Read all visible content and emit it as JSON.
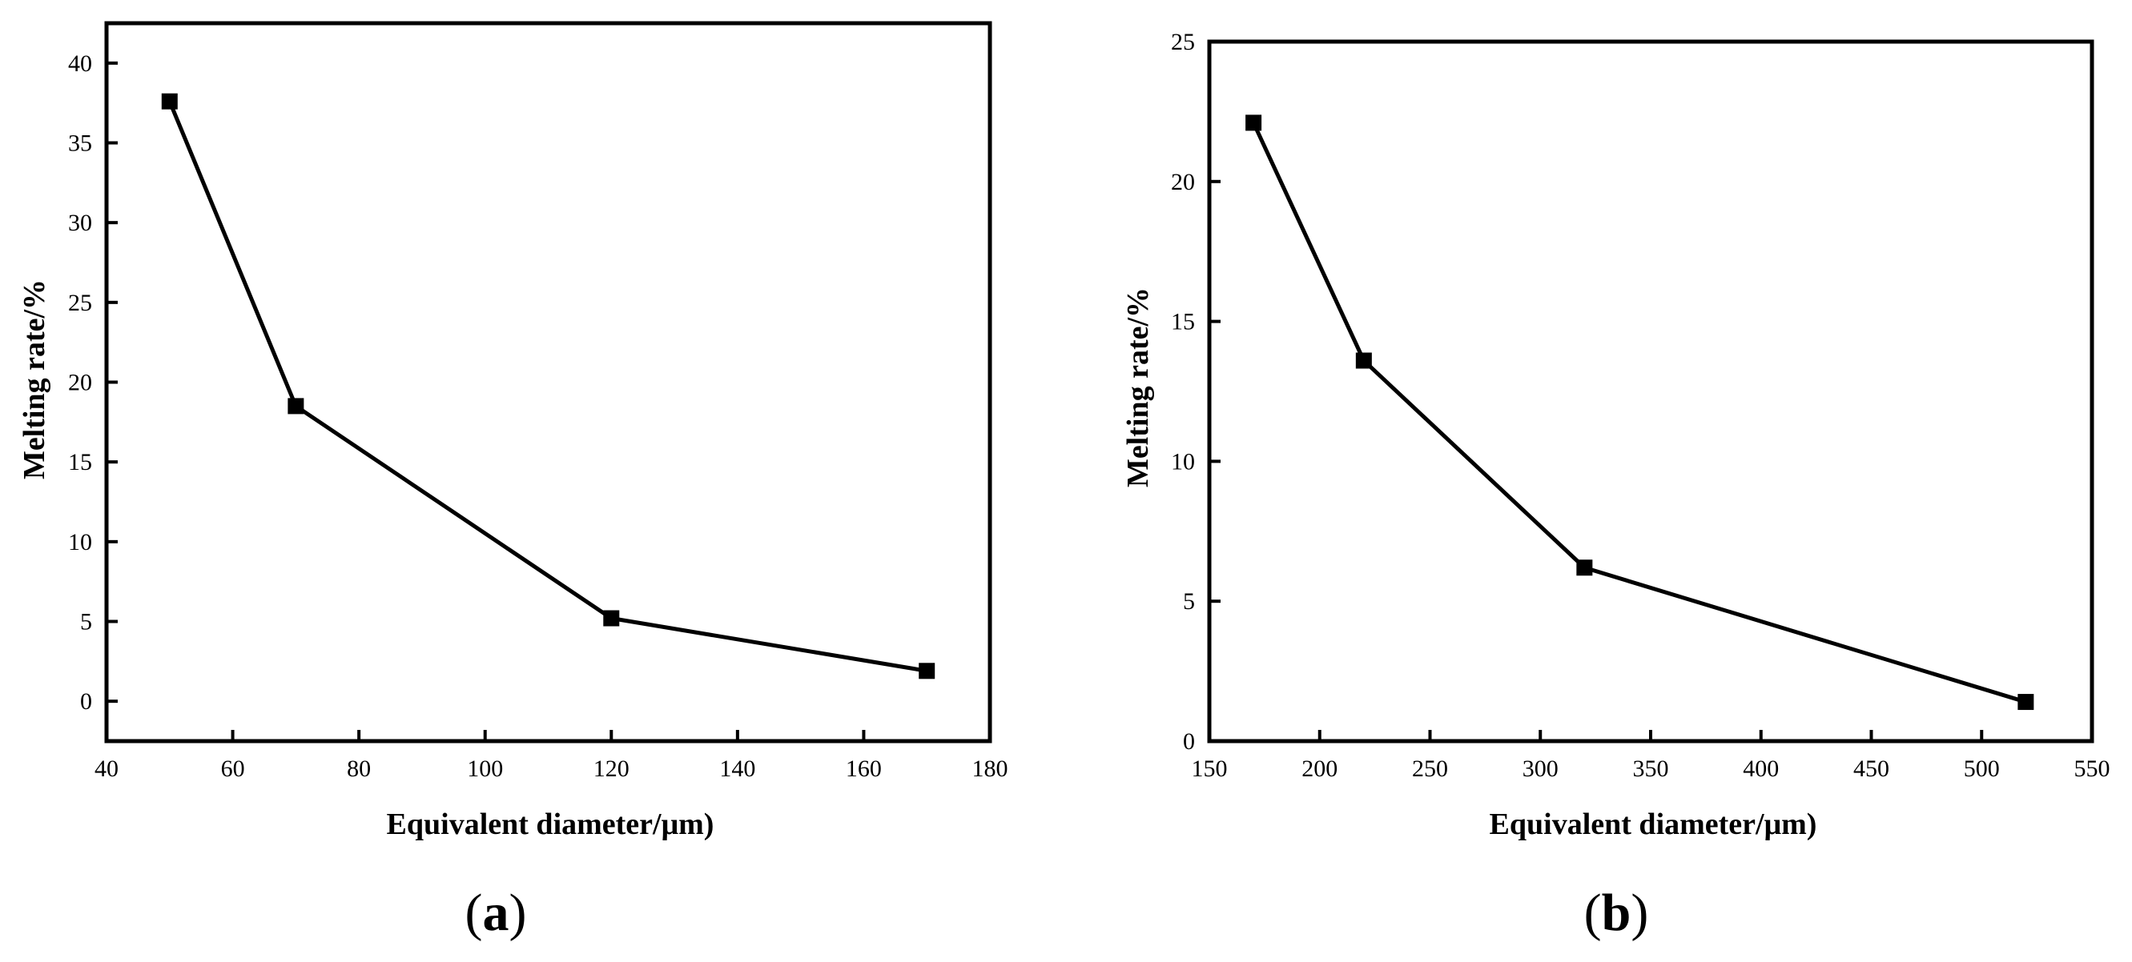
{
  "chart_data": [
    {
      "type": "line",
      "panel_label": "a",
      "title": "",
      "xlabel": "Equivalent diameter/μm)",
      "ylabel": "Melting rate/%",
      "xlim": [
        40,
        180
      ],
      "ylim": [
        -2.5,
        42.5
      ],
      "xticks": [
        40,
        60,
        80,
        100,
        120,
        140,
        160,
        180
      ],
      "yticks": [
        0,
        5,
        10,
        15,
        20,
        25,
        30,
        35,
        40
      ],
      "grid": false,
      "legend": "none",
      "marker": "square",
      "line_color": "#000000",
      "series": [
        {
          "x": [
            50,
            70,
            120,
            170
          ],
          "y": [
            37.6,
            18.5,
            5.2,
            1.9
          ]
        }
      ]
    },
    {
      "type": "line",
      "panel_label": "b",
      "title": "",
      "xlabel": "Equivalent diameter/μm)",
      "ylabel": "Melting rate/%",
      "xlim": [
        150,
        550
      ],
      "ylim": [
        0,
        25
      ],
      "xticks": [
        150,
        200,
        250,
        300,
        350,
        400,
        450,
        500,
        550
      ],
      "yticks": [
        0,
        5,
        10,
        15,
        20,
        25
      ],
      "grid": false,
      "legend": "none",
      "marker": "square",
      "line_color": "#000000",
      "series": [
        {
          "x": [
            170,
            220,
            320,
            520
          ],
          "y": [
            22.1,
            13.6,
            6.2,
            1.4
          ]
        }
      ]
    }
  ]
}
